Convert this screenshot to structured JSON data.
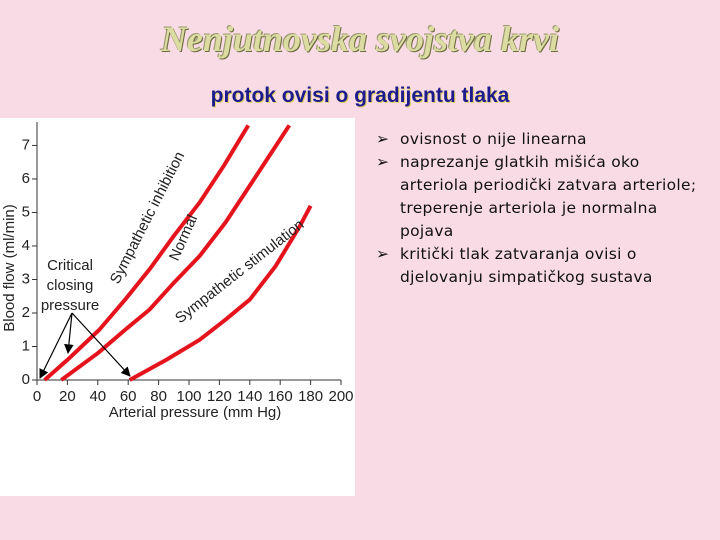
{
  "slide": {
    "title": "Nenjutnovska svojstva krvi",
    "subtitle": "protok  ovisi o gradijentu tlaka",
    "bullets": [
      "ovisnost o nije linearna",
      "naprezanje glatkih mišića oko arteriola periodički zatvara arteriole; treperenje arteriola je normalna pojava",
      "kritički tlak zatvaranja ovisi o djelovanju simpatičkog sustava"
    ]
  },
  "chart_data": {
    "type": "line",
    "x_label": "Arterial pressure (mm Hg)",
    "y_label": "Blood flow (ml/min)",
    "annotation": [
      "Critical",
      "closing",
      "pressure"
    ],
    "xlim": [
      0,
      200
    ],
    "ylim": [
      0,
      7.7
    ],
    "xticks": [
      0,
      20,
      40,
      60,
      80,
      100,
      120,
      140,
      160,
      180,
      200
    ],
    "yticks": [
      0,
      1,
      2,
      3,
      4,
      5,
      6,
      7
    ],
    "series": [
      {
        "name": "Sympathetic inhibition",
        "color": "#e5141c",
        "x": [
          5,
          20,
          41,
          58,
          74,
          90,
          107,
          123,
          139
        ],
        "values": [
          0,
          0.6,
          1.5,
          2.4,
          3.3,
          4.3,
          5.3,
          6.4,
          7.6
        ]
      },
      {
        "name": "Normal",
        "color": "#e5141c",
        "x": [
          16,
          40,
          58,
          74,
          90,
          107,
          124,
          140,
          153,
          166
        ],
        "values": [
          0,
          0.8,
          1.5,
          2.1,
          2.9,
          3.7,
          4.7,
          5.8,
          6.7,
          7.6
        ]
      },
      {
        "name": "Sympathetic stimulation",
        "color": "#e5141c",
        "x": [
          61,
          85,
          107,
          124,
          140,
          157,
          173,
          180
        ],
        "values": [
          0,
          0.6,
          1.2,
          1.8,
          2.4,
          3.4,
          4.6,
          5.2
        ]
      }
    ]
  }
}
